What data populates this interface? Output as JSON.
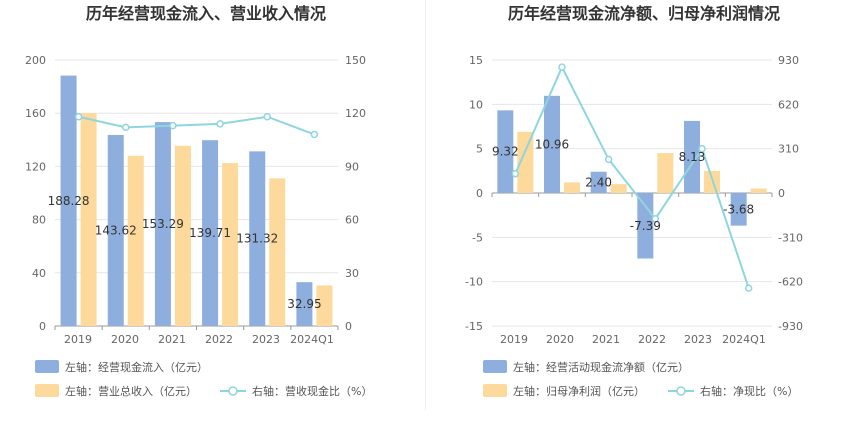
{
  "chart_data": [
    {
      "type": "bar",
      "title": "历年经营现金流入、营业收入情况",
      "categories": [
        "2019",
        "2020",
        "2021",
        "2022",
        "2023",
        "2024Q1"
      ],
      "ylim_left": [
        0,
        200
      ],
      "yticks_left": [
        0,
        40,
        80,
        120,
        160,
        200
      ],
      "ylim_right": [
        0,
        150
      ],
      "yticks_right": [
        0,
        30,
        60,
        90,
        120,
        150
      ],
      "grid": true,
      "legend_position": "bottom-left",
      "series": [
        {
          "name": "左轴：经营现金流入（亿元）",
          "type": "bar",
          "axis": "left",
          "color": "#8eaedd",
          "values": [
            188.28,
            143.62,
            153.29,
            139.71,
            131.32,
            32.95
          ],
          "labels": [
            "188.28",
            "143.62",
            "153.29",
            "139.71",
            "131.32",
            "32.95"
          ]
        },
        {
          "name": "左轴：营业总收入（亿元）",
          "type": "bar",
          "axis": "left",
          "color": "#fdd99b",
          "values": [
            160.0,
            128.0,
            135.5,
            122.5,
            111.0,
            30.5
          ]
        },
        {
          "name": "右轴：营收现金比（%）",
          "type": "line",
          "axis": "right",
          "color": "#8ed6df",
          "values": [
            118,
            112,
            113,
            114,
            118,
            108
          ]
        }
      ]
    },
    {
      "type": "bar",
      "title": "历年经营现金流净额、归母净利润情况",
      "categories": [
        "2019",
        "2020",
        "2021",
        "2022",
        "2023",
        "2024Q1"
      ],
      "ylim_left": [
        -15,
        15
      ],
      "yticks_left": [
        -15,
        -10,
        -5,
        0,
        5,
        10,
        15
      ],
      "ylim_right": [
        -930,
        930
      ],
      "yticks_right": [
        -930,
        -620,
        -310,
        0,
        310,
        620,
        930
      ],
      "grid": true,
      "legend_position": "bottom-left",
      "series": [
        {
          "name": "左轴：经营活动现金流净额（亿元）",
          "type": "bar",
          "axis": "left",
          "color": "#8eaedd",
          "values": [
            9.32,
            10.96,
            2.4,
            -7.39,
            8.13,
            -3.68
          ],
          "labels": [
            "9.32",
            "10.96",
            "2.40",
            "-7.39",
            "8.13",
            "-3.68"
          ]
        },
        {
          "name": "左轴：归母净利润（亿元）",
          "type": "bar",
          "axis": "left",
          "color": "#fdd99b",
          "values": [
            6.9,
            1.2,
            1.0,
            4.5,
            2.5,
            0.5
          ]
        },
        {
          "name": "右轴：净现比（%）",
          "type": "line",
          "axis": "right",
          "color": "#8ed6df",
          "values": [
            135,
            880,
            235,
            -180,
            310,
            -665
          ]
        }
      ]
    }
  ]
}
